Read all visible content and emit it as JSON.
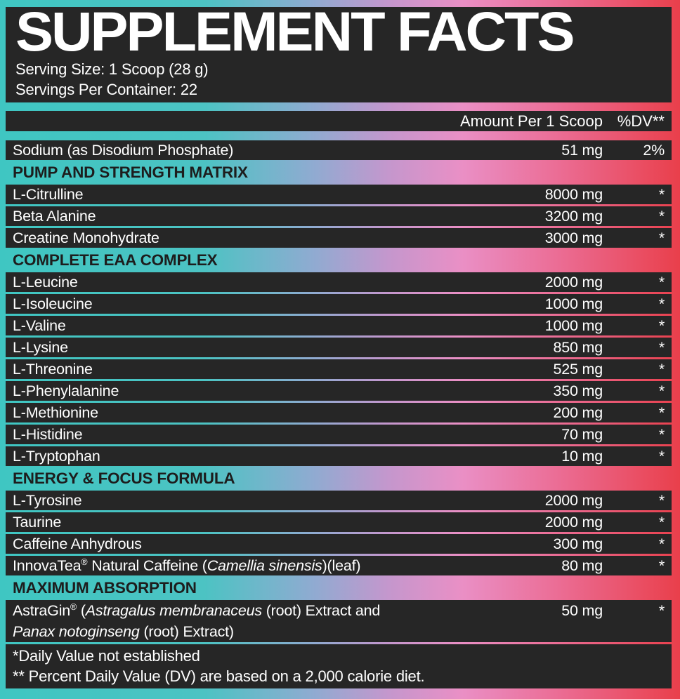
{
  "colors": {
    "gradient": [
      "#3fc6c2",
      "#4cc3c3",
      "#8fabd1",
      "#c497cd",
      "#ea8fc5",
      "#eb6d95",
      "#e93f4b"
    ],
    "panel": "#262626",
    "text": "#ffffff",
    "section_text": "#1d1d1d"
  },
  "header": {
    "title": "SUPPLEMENT FACTS",
    "serving_size": "Serving Size: 1 Scoop (28 g)",
    "servings_per_container": "Servings Per Container: 22"
  },
  "table": {
    "col_amount": "Amount Per 1 Scoop",
    "col_dv": "%DV**",
    "rows": [
      {
        "type": "ingredient",
        "name": [
          {
            "t": "Sodium (as Disodium Phosphate)"
          }
        ],
        "amount": "51 mg",
        "dv": "2%"
      },
      {
        "type": "section",
        "label": "PUMP AND STRENGTH MATRIX"
      },
      {
        "type": "ingredient",
        "name": [
          {
            "t": "L-Citrulline"
          }
        ],
        "amount": "8000 mg",
        "dv": "*"
      },
      {
        "type": "ingredient",
        "name": [
          {
            "t": "Beta Alanine"
          }
        ],
        "amount": "3200 mg",
        "dv": "*"
      },
      {
        "type": "ingredient",
        "name": [
          {
            "t": "Creatine Monohydrate"
          }
        ],
        "amount": "3000 mg",
        "dv": "*"
      },
      {
        "type": "section",
        "label": "COMPLETE EAA COMPLEX"
      },
      {
        "type": "ingredient",
        "name": [
          {
            "t": "L-Leucine"
          }
        ],
        "amount": "2000 mg",
        "dv": "*"
      },
      {
        "type": "ingredient",
        "name": [
          {
            "t": "L-Isoleucine"
          }
        ],
        "amount": "1000 mg",
        "dv": "*"
      },
      {
        "type": "ingredient",
        "name": [
          {
            "t": "L-Valine"
          }
        ],
        "amount": "1000 mg",
        "dv": "*"
      },
      {
        "type": "ingredient",
        "name": [
          {
            "t": "L-Lysine"
          }
        ],
        "amount": "850 mg",
        "dv": "*"
      },
      {
        "type": "ingredient",
        "name": [
          {
            "t": "L-Threonine"
          }
        ],
        "amount": "525 mg",
        "dv": "*"
      },
      {
        "type": "ingredient",
        "name": [
          {
            "t": "L-Phenylalanine"
          }
        ],
        "amount": "350 mg",
        "dv": "*"
      },
      {
        "type": "ingredient",
        "name": [
          {
            "t": "L-Methionine"
          }
        ],
        "amount": "200 mg",
        "dv": "*"
      },
      {
        "type": "ingredient",
        "name": [
          {
            "t": "L-Histidine"
          }
        ],
        "amount": "70 mg",
        "dv": "*"
      },
      {
        "type": "ingredient",
        "name": [
          {
            "t": "L-Tryptophan"
          }
        ],
        "amount": "10 mg",
        "dv": "*"
      },
      {
        "type": "section",
        "label": "ENERGY & FOCUS FORMULA"
      },
      {
        "type": "ingredient",
        "name": [
          {
            "t": "L-Tyrosine"
          }
        ],
        "amount": "2000 mg",
        "dv": "*"
      },
      {
        "type": "ingredient",
        "name": [
          {
            "t": "Taurine"
          }
        ],
        "amount": "2000 mg",
        "dv": "*"
      },
      {
        "type": "ingredient",
        "name": [
          {
            "t": "Caffeine Anhydrous"
          }
        ],
        "amount": "300 mg",
        "dv": "*"
      },
      {
        "type": "ingredient",
        "name": [
          {
            "t": "InnovaTea"
          },
          {
            "t": "®",
            "sup": true
          },
          {
            "t": " Natural Caffeine ("
          },
          {
            "t": "Camellia sinensis",
            "i": true
          },
          {
            "t": ")(leaf)"
          }
        ],
        "amount": "80 mg",
        "dv": "*"
      },
      {
        "type": "section",
        "label": "MAXIMUM ABSORPTION"
      },
      {
        "type": "ingredient",
        "name": [
          {
            "t": "AstraGin"
          },
          {
            "t": "®",
            "sup": true
          },
          {
            "t": " ("
          },
          {
            "t": "Astragalus membranaceus",
            "i": true
          },
          {
            "t": " (root) Extract and"
          }
        ],
        "name2": [
          {
            "t": "Panax notoginseng",
            "i": true
          },
          {
            "t": " (root) Extract)"
          }
        ],
        "amount": "50 mg",
        "dv": "*"
      }
    ]
  },
  "footnotes": {
    "line1": "*Daily Value not established",
    "line2": "** Percent Daily Value (DV) are based on a 2,000 calorie diet."
  }
}
